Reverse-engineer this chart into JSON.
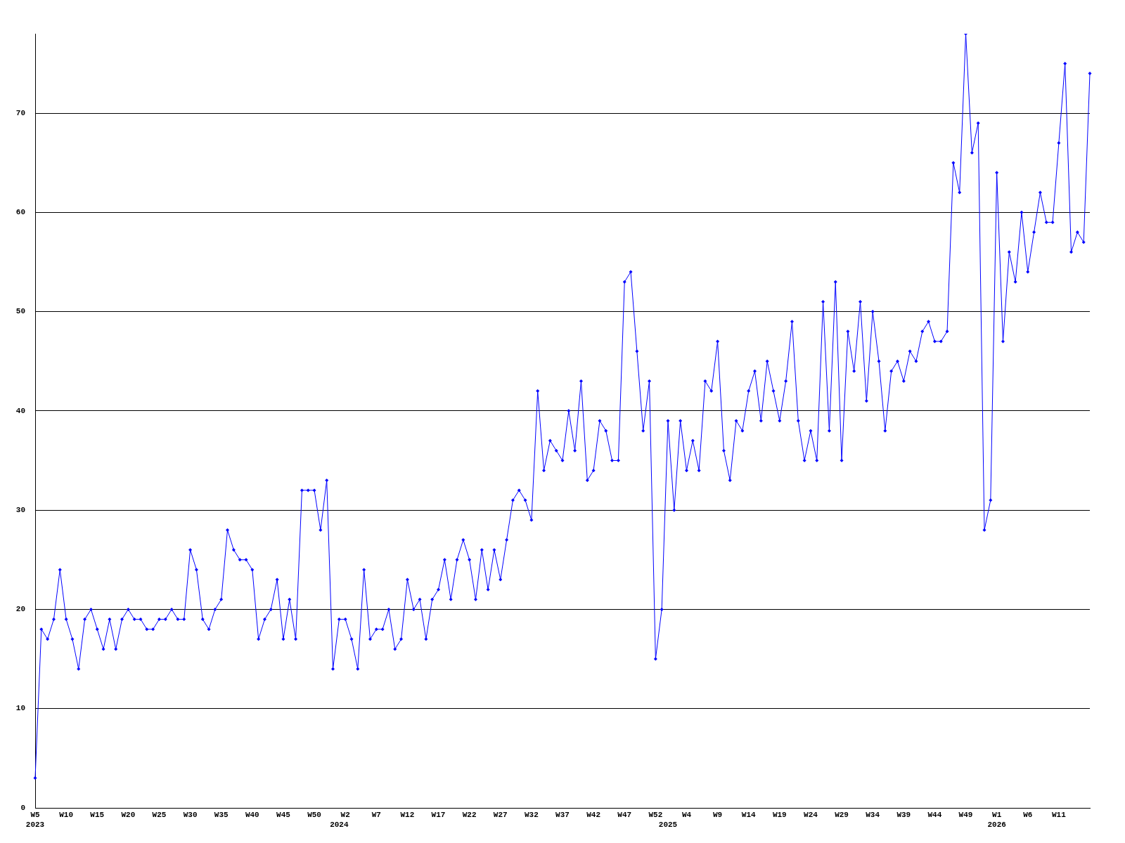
{
  "chart_data": {
    "type": "line",
    "categories": [
      "W5\n2023",
      null,
      null,
      null,
      null,
      "W10",
      null,
      null,
      null,
      null,
      "W15",
      null,
      null,
      null,
      null,
      "W20",
      null,
      null,
      null,
      null,
      "W25",
      null,
      null,
      null,
      null,
      "W30",
      null,
      null,
      null,
      null,
      "W35",
      null,
      null,
      null,
      null,
      "W40",
      null,
      null,
      null,
      null,
      "W45",
      null,
      null,
      null,
      null,
      "W50",
      null,
      null,
      null,
      "\n2024",
      "W2",
      null,
      null,
      null,
      null,
      "W7",
      null,
      null,
      null,
      null,
      "W12",
      null,
      null,
      null,
      null,
      "W17",
      null,
      null,
      null,
      null,
      "W22",
      null,
      null,
      null,
      null,
      "W27",
      null,
      null,
      null,
      null,
      "W32",
      null,
      null,
      null,
      null,
      "W37",
      null,
      null,
      null,
      null,
      "W42",
      null,
      null,
      null,
      null,
      "W47",
      null,
      null,
      null,
      null,
      "W52",
      null,
      "\n2025",
      null,
      null,
      "W4",
      null,
      null,
      null,
      null,
      "W9",
      null,
      null,
      null,
      null,
      "W14",
      null,
      null,
      null,
      null,
      "W19",
      null,
      null,
      null,
      null,
      "W24",
      null,
      null,
      null,
      null,
      "W29",
      null,
      null,
      null,
      null,
      "W34",
      null,
      null,
      null,
      null,
      "W39",
      null,
      null,
      null,
      null,
      "W44",
      null,
      null,
      null,
      null,
      "W49",
      null,
      null,
      null,
      null,
      "W1\n2026",
      null,
      null,
      null,
      null,
      "W6",
      null,
      null,
      null,
      null,
      "W11",
      null,
      null,
      null,
      null,
      null
    ],
    "values": [
      3,
      18,
      17,
      19,
      24,
      19,
      17,
      14,
      19,
      20,
      18,
      16,
      19,
      16,
      19,
      20,
      19,
      19,
      18,
      18,
      19,
      19,
      20,
      19,
      19,
      26,
      24,
      19,
      18,
      20,
      21,
      28,
      26,
      25,
      25,
      24,
      17,
      19,
      20,
      23,
      17,
      21,
      17,
      32,
      32,
      32,
      28,
      33,
      14,
      19,
      19,
      17,
      14,
      24,
      17,
      18,
      18,
      20,
      16,
      17,
      23,
      20,
      21,
      17,
      21,
      22,
      25,
      21,
      25,
      27,
      25,
      21,
      26,
      22,
      26,
      23,
      27,
      31,
      32,
      31,
      29,
      42,
      34,
      37,
      36,
      35,
      40,
      36,
      43,
      33,
      34,
      39,
      38,
      35,
      35,
      53,
      54,
      46,
      38,
      43,
      15,
      20,
      39,
      30,
      39,
      34,
      37,
      34,
      43,
      42,
      47,
      36,
      33,
      39,
      38,
      42,
      44,
      39,
      45,
      42,
      39,
      43,
      49,
      39,
      35,
      38,
      35,
      51,
      38,
      53,
      35,
      48,
      44,
      51,
      41,
      50,
      45,
      38,
      44,
      45,
      43,
      46,
      45,
      48,
      49,
      47,
      47,
      48,
      65,
      62,
      78,
      66,
      69,
      28,
      31,
      64,
      47,
      56,
      53,
      60,
      54,
      58,
      62,
      59,
      59,
      67,
      75,
      56,
      58,
      57,
      74
    ],
    "color": "#0000ff",
    "ylim": [
      0,
      78
    ],
    "yticks": [
      0,
      10,
      20,
      30,
      40,
      50,
      60,
      70
    ],
    "grid": "y",
    "marker": "diamond"
  }
}
